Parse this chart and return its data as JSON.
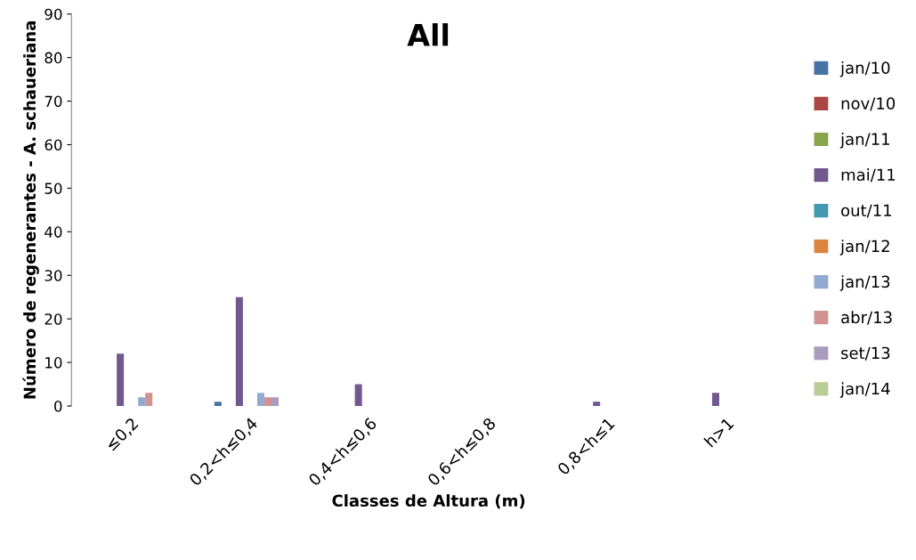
{
  "chart_data": {
    "type": "bar",
    "title": "All",
    "xlabel": "Classes de Altura (m)",
    "ylabel": "Número de regenerantes - A. schaueriana",
    "categories": [
      "≤0,2",
      "0,2<h≤0,4",
      "0,4<h≤0,6",
      "0,6<h≤0,8",
      "0,8<h≤1",
      "h>1"
    ],
    "series": [
      {
        "name": "jan/10",
        "color": "#4572a7",
        "values": [
          0,
          1,
          0,
          0,
          0,
          0
        ]
      },
      {
        "name": "nov/10",
        "color": "#aa4643",
        "values": [
          0,
          0,
          0,
          0,
          0,
          0
        ]
      },
      {
        "name": "jan/11",
        "color": "#89a54e",
        "values": [
          0,
          0,
          0,
          0,
          0,
          0
        ]
      },
      {
        "name": "mai/11",
        "color": "#71588f",
        "values": [
          12,
          25,
          5,
          0,
          1,
          3
        ]
      },
      {
        "name": "out/11",
        "color": "#4198af",
        "values": [
          0,
          0,
          0,
          0,
          0,
          0
        ]
      },
      {
        "name": "jan/12",
        "color": "#db843d",
        "values": [
          0,
          0,
          0,
          0,
          0,
          0
        ]
      },
      {
        "name": "jan/13",
        "color": "#93a9cf",
        "values": [
          2,
          3,
          0,
          0,
          0,
          0
        ]
      },
      {
        "name": "abr/13",
        "color": "#d19392",
        "values": [
          3,
          2,
          0,
          0,
          0,
          0
        ]
      },
      {
        "name": "set/13",
        "color": "#a99bbd",
        "values": [
          0,
          2,
          0,
          0,
          0,
          0
        ]
      },
      {
        "name": "jan/14",
        "color": "#b9cd96",
        "values": [
          0,
          0,
          0,
          0,
          0,
          0
        ]
      }
    ],
    "ylim": [
      0,
      90
    ],
    "yticks": [
      0,
      10,
      20,
      30,
      40,
      50,
      60,
      70,
      80,
      90
    ],
    "grid": false,
    "legend": "right"
  }
}
